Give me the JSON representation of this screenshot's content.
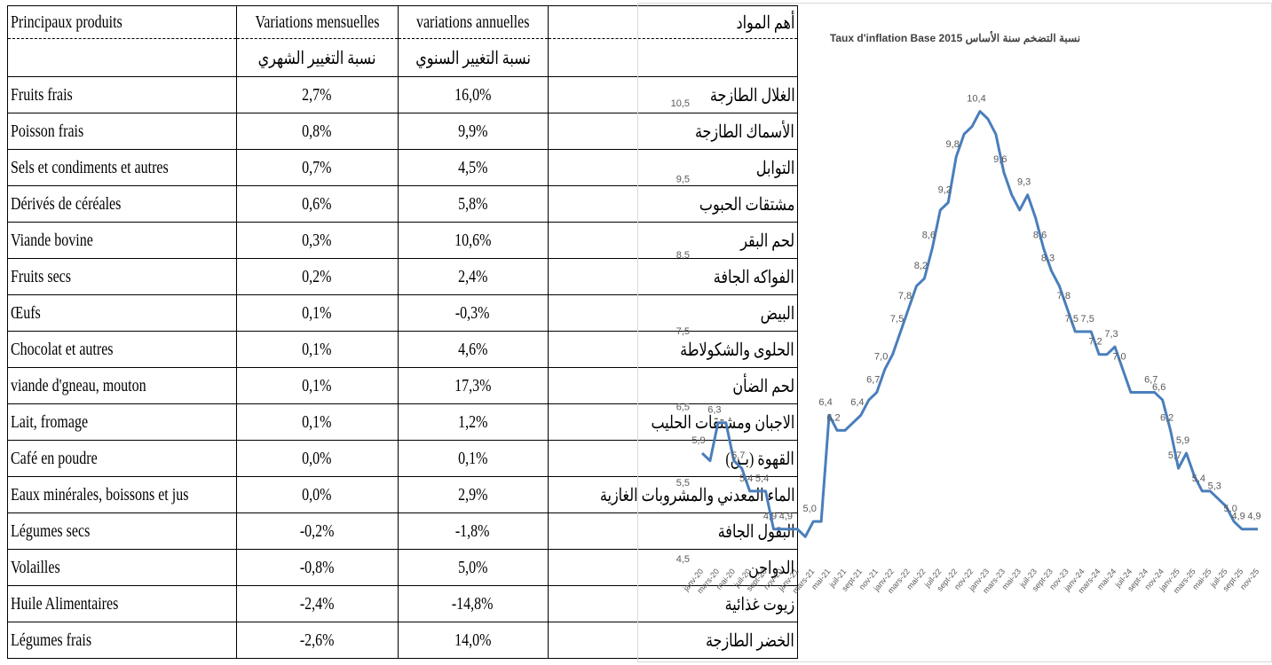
{
  "table": {
    "header": {
      "products": "Principaux produits",
      "monthly": "Variations mensuelles",
      "annual": "variations annuelles",
      "products_ar": "أهم المواد",
      "monthly_ar": "نسبة التغيير الشهري",
      "annual_ar": "نسبة التغيير السنوي"
    },
    "rows": [
      [
        "Fruits frais",
        "2,7%",
        "16,0%",
        "الغلال الطازجة"
      ],
      [
        "Poisson frais",
        "0,8%",
        "9,9%",
        "الأسماك الطازجة"
      ],
      [
        "Sels et condiments et autres",
        "0,7%",
        "4,5%",
        "التوابل"
      ],
      [
        "Dérivés de céréales",
        "0,6%",
        "5,8%",
        "مشتقات الحبوب"
      ],
      [
        "Viande bovine",
        "0,3%",
        "10,6%",
        "لحم البقر"
      ],
      [
        "Fruits secs",
        "0,2%",
        "2,4%",
        "الفواكه الجافة"
      ],
      [
        "Œufs",
        "0,1%",
        "-0,3%",
        "البيض"
      ],
      [
        "Chocolat et autres",
        "0,1%",
        "4,6%",
        "الحلوى والشكولاطة"
      ],
      [
        "viande d'gneau, mouton",
        "0,1%",
        "17,3%",
        "لحم الضأن"
      ],
      [
        "Lait, fromage",
        "0,1%",
        "1,2%",
        "الاجبان ومشتقات الحليب"
      ],
      [
        "Café en poudre",
        "0,0%",
        "0,1%",
        "القهوة (بـن)"
      ],
      [
        "Eaux minérales, boissons et jus",
        "0,0%",
        "2,9%",
        "الماء المعدني والمشروبات الغازية"
      ],
      [
        "Légumes secs",
        "-0,2%",
        "-1,8%",
        "البقول الجافة"
      ],
      [
        "Volailles",
        "-0,8%",
        "5,0%",
        "الدواجن"
      ],
      [
        "Huile Alimentaires",
        "-2,4%",
        "-14,8%",
        "زيوت غذائية"
      ],
      [
        "Légumes frais",
        "-2,6%",
        "14,0%",
        "الخضر الطازجة"
      ]
    ]
  },
  "chart_data": {
    "type": "line",
    "title": "Taux d'inflation Base  2015 نسبة التضخم سنة الأساس",
    "color": "#4a7ebb",
    "grid": false,
    "categories": [
      "janv-20",
      null,
      "mars-20",
      null,
      "mai-20",
      null,
      "juil-20",
      null,
      "sept-20",
      null,
      "nov-20",
      null,
      "janv-21",
      null,
      "mars-21",
      null,
      "mai-21",
      null,
      "juil-21",
      null,
      "sept-21",
      null,
      "nov-21",
      null,
      "janv-22",
      null,
      "mars-22",
      null,
      "mai-22",
      null,
      "juil-22",
      null,
      "sept-22",
      null,
      "nov-22",
      null,
      "janv-23",
      null,
      "mars-23",
      null,
      "mai-23",
      null,
      "juil-23",
      null,
      "sept-23",
      null,
      "nov-23",
      null,
      "janv-24",
      null,
      "mars-24",
      null,
      "mai-24",
      null,
      "juil-24",
      null,
      "sept-24",
      null,
      "nov-24",
      null,
      "janv-25",
      null,
      "mars-25",
      null,
      "mai-25",
      null,
      "juil-25",
      null,
      "sept-25",
      null,
      "nov-25"
    ],
    "values": [
      5.9,
      5.8,
      6.3,
      6.3,
      5.8,
      5.7,
      5.4,
      5.4,
      5.4,
      4.9,
      4.9,
      4.9,
      4.9,
      4.8,
      5.0,
      5.0,
      6.4,
      6.2,
      6.2,
      6.3,
      6.4,
      6.6,
      6.7,
      7.0,
      7.2,
      7.5,
      7.8,
      8.1,
      8.2,
      8.6,
      9.1,
      9.2,
      9.8,
      10.1,
      10.2,
      10.4,
      10.3,
      10.1,
      9.6,
      9.3,
      9.1,
      9.3,
      9.0,
      8.6,
      8.3,
      8.1,
      7.8,
      7.5,
      7.5,
      7.5,
      7.2,
      7.2,
      7.3,
      7.0,
      6.7,
      6.7,
      6.7,
      6.7,
      6.6,
      6.2,
      5.7,
      5.9,
      5.6,
      5.4,
      5.4,
      5.3,
      5.2,
      5.0,
      4.9,
      4.9,
      4.9
    ],
    "value_labels": [
      "5,9",
      null,
      "6,3",
      null,
      null,
      "5,7",
      "5,4",
      null,
      "5,4",
      "4,9",
      null,
      "4,9",
      null,
      null,
      "5,0",
      null,
      "6,4",
      "6,2",
      null,
      null,
      "6,4",
      null,
      "6,7",
      "7,0",
      null,
      "7,5",
      "7,8",
      null,
      "8,2",
      "8,6",
      null,
      "9,2",
      "9,8",
      null,
      null,
      "10,4",
      null,
      null,
      "9,6",
      null,
      null,
      "9,3",
      null,
      "8,6",
      "8,3",
      null,
      "7,8",
      "7,5",
      null,
      "7,5",
      "7,2",
      null,
      "7,3",
      "7,0",
      null,
      null,
      null,
      "6,7",
      "6,6",
      "6,2",
      "5,7",
      "5,9",
      null,
      "5,4",
      null,
      "5,3",
      null,
      "5,0",
      "4,9",
      null,
      "4,9"
    ],
    "ylim": [
      4.5,
      10.5
    ],
    "yticks": [
      {
        "value": 4.5,
        "label": "4,5"
      },
      {
        "value": 5.5,
        "label": "5,5"
      },
      {
        "value": 6.5,
        "label": "6,5"
      },
      {
        "value": 7.5,
        "label": "7,5"
      },
      {
        "value": 8.5,
        "label": "8,5"
      },
      {
        "value": 9.5,
        "label": "9,5"
      },
      {
        "value": 10.5,
        "label": "10,5"
      }
    ]
  }
}
